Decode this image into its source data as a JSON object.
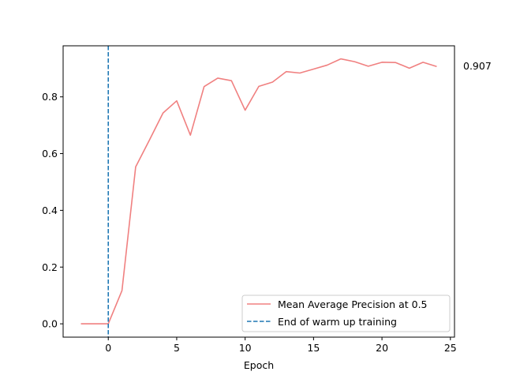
{
  "chart_data": {
    "type": "line",
    "xlabel": "Epoch",
    "ylabel": "",
    "xlim": [
      -3.3,
      25.3
    ],
    "ylim": [
      -0.047,
      0.98
    ],
    "xticks": [
      0,
      5,
      10,
      15,
      20,
      25
    ],
    "yticks": [
      0.0,
      0.2,
      0.4,
      0.6,
      0.8
    ],
    "ytick_labels": [
      "0.0",
      "0.2",
      "0.4",
      "0.6",
      "0.8"
    ],
    "grid": false,
    "legend_position": "lower-right",
    "series": [
      {
        "name": "Mean Average Precision at 0.5",
        "style": "solid",
        "color": "#f08080",
        "x": [
          -2,
          -1,
          0,
          1,
          2,
          3,
          4,
          5,
          6,
          7,
          8,
          9,
          10,
          11,
          12,
          13,
          14,
          15,
          16,
          17,
          18,
          19,
          20,
          21,
          22,
          23,
          24
        ],
        "y": [
          0.0,
          0.0,
          0.0,
          0.117,
          0.553,
          0.647,
          0.743,
          0.786,
          0.665,
          0.836,
          0.866,
          0.857,
          0.753,
          0.837,
          0.852,
          0.889,
          0.884,
          0.898,
          0.912,
          0.934,
          0.924,
          0.908,
          0.922,
          0.921,
          0.901,
          0.922,
          0.907
        ]
      },
      {
        "name": "End of warm up training",
        "style": "dashed",
        "color": "#1f77b4",
        "vline_x": 0
      }
    ],
    "end_annotation": "0.907"
  }
}
